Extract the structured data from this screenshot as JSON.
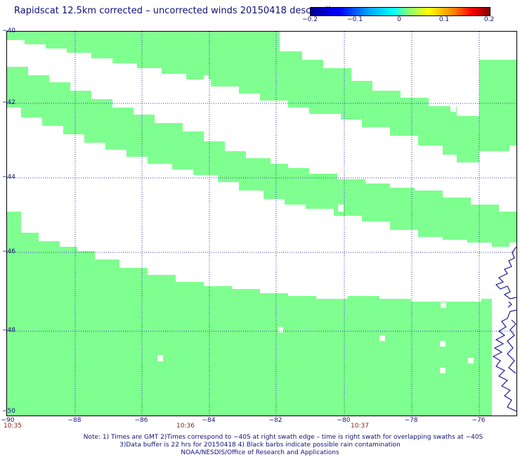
{
  "title": "Rapidscat 12.5km corrected – uncorrected winds 20150418 descending",
  "colorbar": {
    "ticks": [
      "−0.2",
      "−0.1",
      "0",
      "0.1",
      "0.2"
    ]
  },
  "axes": {
    "lat_labels": [
      "−40",
      "−42",
      "−44",
      "−46",
      "−48",
      "−50"
    ],
    "lon_labels": [
      "−90",
      "−88",
      "−86",
      "−84",
      "−82",
      "−80",
      "−78",
      "−76"
    ],
    "time_labels": [
      "10:35",
      "10:36",
      "10:37"
    ]
  },
  "notes": {
    "line1": "Note: 1) Times are GMT 2)Times correspond to −40S at right swath edge – time is right swath for overlapping swaths at −40S",
    "line2": "3)Data buffer is 22 hrs for 20150418 4) Black barbs indicate possible rain contamination",
    "line3": "NOAA/NESDIS/Office of Research and Applications"
  },
  "colors": {
    "swath": "#7fff8f",
    "grid": "#3333bb",
    "coast": "#1a1a99",
    "text": "#10107a",
    "time": "#8b1a1a"
  }
}
